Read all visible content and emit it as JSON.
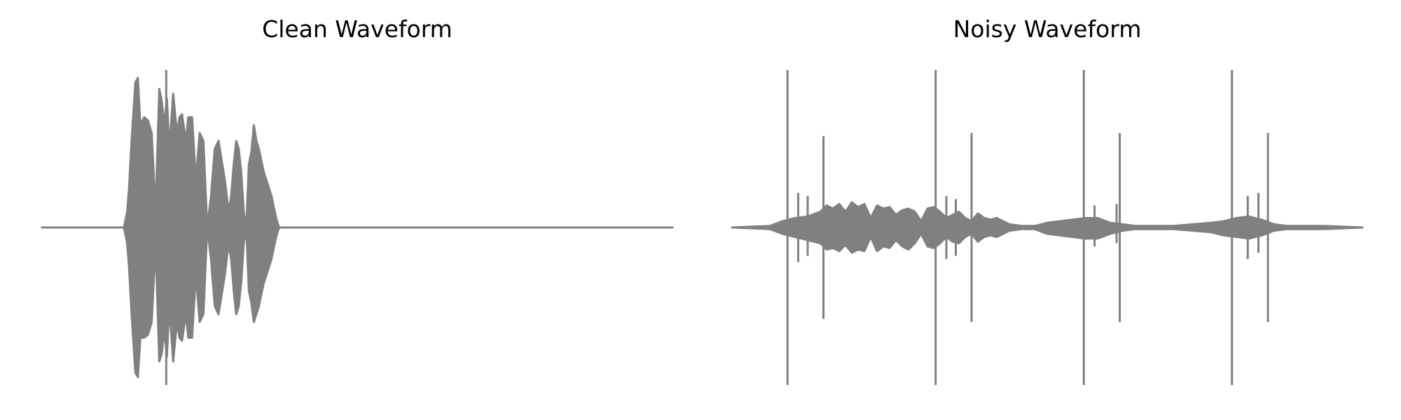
{
  "chart_data": [
    {
      "type": "line",
      "title": "Clean Waveform",
      "xlabel": "",
      "ylabel": "",
      "axes_visible": false,
      "grid": false,
      "series_color": "#808080",
      "xlim": [
        0,
        1
      ],
      "ylim": [
        -1,
        1
      ],
      "envelope": {
        "x": [
          0.0,
          0.13,
          0.135,
          0.138,
          0.142,
          0.148,
          0.152,
          0.156,
          0.162,
          0.168,
          0.174,
          0.18,
          0.186,
          0.19,
          0.194,
          0.198,
          0.202,
          0.208,
          0.214,
          0.218,
          0.222,
          0.228,
          0.232,
          0.238,
          0.244,
          0.25,
          0.256,
          0.262,
          0.268,
          0.274,
          0.28,
          0.286,
          0.29,
          0.296,
          0.3,
          0.304,
          0.308,
          0.312,
          0.316,
          0.32,
          0.324,
          0.328,
          0.332,
          0.336,
          0.34,
          0.344,
          0.348,
          0.352,
          0.356,
          0.36,
          0.364,
          0.368,
          0.372,
          0.376,
          0.38,
          0.384,
          0.388,
          0.392,
          0.396,
          0.4,
          1.0
        ],
        "top": [
          0.0,
          0.0,
          0.1,
          0.25,
          0.55,
          0.92,
          0.95,
          0.65,
          0.7,
          0.68,
          0.6,
          0.1,
          0.88,
          0.8,
          0.65,
          0.82,
          0.5,
          0.85,
          0.6,
          0.7,
          0.72,
          0.55,
          0.7,
          0.7,
          0.3,
          0.6,
          0.55,
          0.0,
          0.2,
          0.5,
          0.55,
          0.4,
          0.3,
          0.1,
          0.2,
          0.4,
          0.55,
          0.5,
          0.35,
          0.1,
          0.0,
          0.4,
          0.48,
          0.65,
          0.55,
          0.5,
          0.42,
          0.35,
          0.3,
          0.25,
          0.2,
          0.12,
          0.05,
          0.0,
          0.0,
          0.0,
          0.0,
          0.0,
          0.0,
          0.0,
          0.0
        ],
        "bottom": [
          0.0,
          0.0,
          -0.1,
          -0.25,
          -0.55,
          -0.92,
          -0.95,
          -0.7,
          -0.7,
          -0.68,
          -0.6,
          -0.1,
          -0.85,
          -0.8,
          -0.65,
          -0.82,
          -0.5,
          -0.85,
          -0.6,
          -0.7,
          -0.72,
          -0.55,
          -0.7,
          -0.7,
          -0.3,
          -0.6,
          -0.55,
          0.0,
          -0.2,
          -0.5,
          -0.55,
          -0.4,
          -0.3,
          -0.1,
          -0.2,
          -0.4,
          -0.55,
          -0.5,
          -0.35,
          -0.1,
          0.0,
          -0.4,
          -0.48,
          -0.6,
          -0.55,
          -0.5,
          -0.42,
          -0.35,
          -0.3,
          -0.25,
          -0.2,
          -0.12,
          -0.05,
          0.0,
          0.0,
          0.0,
          0.0,
          0.0,
          0.0,
          0.0,
          0.0
        ]
      },
      "spikes": [
        {
          "x": 0.197,
          "low": -1.0,
          "high": 1.0
        }
      ]
    },
    {
      "type": "line",
      "title": "Noisy Waveform",
      "xlabel": "",
      "ylabel": "",
      "axes_visible": false,
      "grid": false,
      "series_color": "#808080",
      "xlim": [
        0,
        1
      ],
      "ylim": [
        -1,
        1
      ],
      "envelope": {
        "x": [
          0.0,
          0.06,
          0.08,
          0.1,
          0.12,
          0.14,
          0.15,
          0.16,
          0.17,
          0.18,
          0.19,
          0.2,
          0.21,
          0.22,
          0.23,
          0.24,
          0.25,
          0.26,
          0.27,
          0.28,
          0.29,
          0.3,
          0.31,
          0.32,
          0.33,
          0.34,
          0.35,
          0.36,
          0.37,
          0.38,
          0.39,
          0.4,
          0.41,
          0.42,
          0.43,
          0.44,
          0.46,
          0.48,
          0.5,
          0.54,
          0.56,
          0.58,
          0.6,
          0.62,
          0.64,
          0.66,
          0.7,
          0.76,
          0.78,
          0.8,
          0.82,
          0.84,
          0.86,
          0.88,
          0.9,
          0.94,
          1.0
        ],
        "top": [
          0.0,
          0.01,
          0.04,
          0.06,
          0.07,
          0.1,
          0.14,
          0.12,
          0.15,
          0.1,
          0.16,
          0.13,
          0.15,
          0.06,
          0.14,
          0.12,
          0.13,
          0.08,
          0.11,
          0.12,
          0.1,
          0.04,
          0.12,
          0.13,
          0.1,
          0.06,
          0.08,
          0.1,
          0.06,
          0.04,
          0.09,
          0.06,
          0.05,
          0.06,
          0.04,
          0.02,
          0.01,
          0.01,
          0.03,
          0.05,
          0.06,
          0.06,
          0.03,
          0.02,
          0.01,
          0.01,
          0.01,
          0.03,
          0.04,
          0.06,
          0.07,
          0.05,
          0.02,
          0.01,
          0.01,
          0.01,
          0.0
        ],
        "bottom": [
          0.0,
          -0.01,
          -0.04,
          -0.06,
          -0.08,
          -0.1,
          -0.14,
          -0.13,
          -0.15,
          -0.11,
          -0.16,
          -0.14,
          -0.15,
          -0.06,
          -0.15,
          -0.12,
          -0.13,
          -0.08,
          -0.12,
          -0.14,
          -0.1,
          -0.04,
          -0.12,
          -0.13,
          -0.1,
          -0.06,
          -0.09,
          -0.1,
          -0.06,
          -0.04,
          -0.09,
          -0.06,
          -0.05,
          -0.06,
          -0.04,
          -0.02,
          -0.01,
          -0.01,
          -0.04,
          -0.06,
          -0.07,
          -0.07,
          -0.04,
          -0.02,
          -0.01,
          -0.01,
          -0.01,
          -0.03,
          -0.05,
          -0.06,
          -0.07,
          -0.05,
          -0.02,
          -0.01,
          -0.01,
          -0.01,
          0.0
        ]
      },
      "spikes": [
        {
          "x": 0.088,
          "low": -1.0,
          "high": 1.0
        },
        {
          "x": 0.145,
          "low": -0.58,
          "high": 0.58
        },
        {
          "x": 0.323,
          "low": -1.0,
          "high": 1.0
        },
        {
          "x": 0.38,
          "low": -0.6,
          "high": 0.6
        },
        {
          "x": 0.558,
          "low": -1.0,
          "high": 1.0
        },
        {
          "x": 0.615,
          "low": -0.6,
          "high": 0.6
        },
        {
          "x": 0.793,
          "low": -1.0,
          "high": 1.0
        },
        {
          "x": 0.85,
          "low": -0.6,
          "high": 0.6
        },
        {
          "x": 0.105,
          "low": -0.22,
          "high": 0.22
        },
        {
          "x": 0.12,
          "low": -0.18,
          "high": 0.2
        },
        {
          "x": 0.34,
          "low": -0.2,
          "high": 0.2
        },
        {
          "x": 0.355,
          "low": -0.18,
          "high": 0.18
        },
        {
          "x": 0.575,
          "low": -0.12,
          "high": 0.14
        },
        {
          "x": 0.61,
          "low": -0.1,
          "high": 0.15
        },
        {
          "x": 0.818,
          "low": -0.2,
          "high": 0.2
        },
        {
          "x": 0.835,
          "low": -0.16,
          "high": 0.22
        }
      ]
    }
  ]
}
